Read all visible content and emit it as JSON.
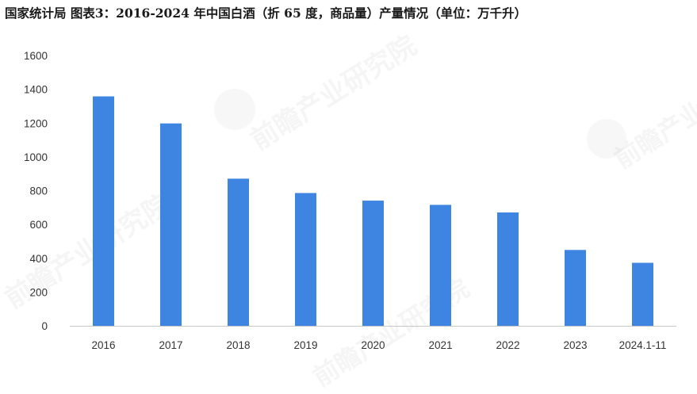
{
  "chart_data": {
    "type": "bar",
    "title": "国家统计局  图表3：2016-2024 年中国白酒（折 65 度，商品量）产量情况（单位：万千升）",
    "categories": [
      "2016",
      "2017",
      "2018",
      "2019",
      "2020",
      "2021",
      "2022",
      "2023",
      "2024.1-11"
    ],
    "values": [
      1358,
      1198,
      871,
      786,
      741,
      716,
      671,
      449,
      373
    ],
    "ylim": [
      0,
      1600
    ],
    "yticks": [
      0,
      200,
      400,
      600,
      800,
      1000,
      1200,
      1400,
      1600
    ],
    "xlabel": "",
    "ylabel": "",
    "grid": false,
    "legend": "none",
    "bar_color": "#3D85E0"
  },
  "watermark": {
    "text": "前瞻产业研究院"
  }
}
